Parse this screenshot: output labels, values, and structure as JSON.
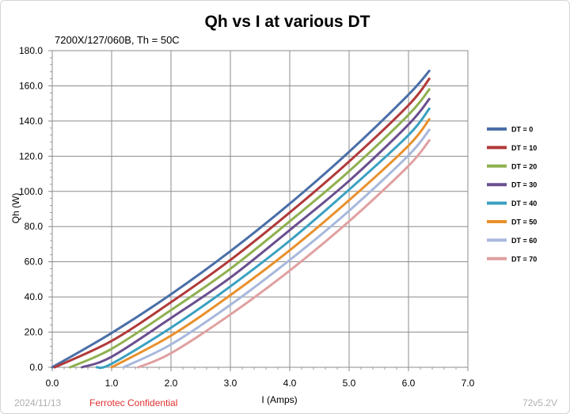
{
  "chart_data": {
    "type": "line",
    "title": "Qh vs I at various DT",
    "subtitle": "7200X/127/060B, Th = 50C",
    "xlabel": "I (Amps)",
    "ylabel": "Qh (W)",
    "xlim": [
      0,
      7
    ],
    "ylim": [
      0,
      180
    ],
    "x_ticks": [
      "0.0",
      "1.0",
      "2.0",
      "3.0",
      "4.0",
      "5.0",
      "6.0",
      "7.0"
    ],
    "y_ticks": [
      "0.0",
      "20.0",
      "40.0",
      "60.0",
      "80.0",
      "100.0",
      "120.0",
      "140.0",
      "160.0",
      "180.0"
    ],
    "grid": true,
    "legend_position": "right",
    "x": [
      0,
      1,
      2,
      3,
      4,
      5,
      6,
      6.35
    ],
    "series": [
      {
        "name": "DT = 0",
        "color": "#4a6fa8",
        "x_start": 0.0,
        "values": [
          null,
          19.5,
          41.5,
          66.0,
          93.0,
          122.5,
          155.0,
          168.5
        ]
      },
      {
        "name": "DT = 10",
        "color": "#b03a3a",
        "x_start": 0.04,
        "values": [
          null,
          15.0,
          37.0,
          61.0,
          88.0,
          117.0,
          149.0,
          164.0
        ]
      },
      {
        "name": "DT = 20",
        "color": "#8fb050",
        "x_start": 0.3,
        "values": [
          null,
          10.5,
          32.5,
          56.0,
          83.0,
          111.5,
          143.5,
          158.0
        ]
      },
      {
        "name": "DT = 30",
        "color": "#6a4f8f",
        "x_start": 0.5,
        "values": [
          null,
          6.0,
          28.0,
          51.0,
          78.0,
          106.0,
          138.0,
          152.5
        ]
      },
      {
        "name": "DT = 40",
        "color": "#3aa0c0",
        "x_start": 0.75,
        "values": [
          null,
          2.0,
          22.5,
          46.0,
          72.0,
          101.0,
          132.0,
          147.0
        ]
      },
      {
        "name": "DT = 50",
        "color": "#e8902c",
        "x_start": 1.0,
        "values": [
          null,
          0.0,
          18.0,
          41.0,
          66.5,
          95.0,
          126.0,
          141.0
        ]
      },
      {
        "name": "DT = 60",
        "color": "#a8b8dc",
        "x_start": 1.2,
        "values": [
          null,
          null,
          13.0,
          35.5,
          61.0,
          89.0,
          120.5,
          135.0
        ]
      },
      {
        "name": "DT = 70",
        "color": "#e0a0a0",
        "x_start": 1.45,
        "values": [
          null,
          null,
          8.0,
          30.0,
          55.0,
          83.0,
          114.5,
          129.0
        ]
      }
    ]
  },
  "footer": {
    "date": "2024/11/13",
    "confidential": "Ferrotec Confidential",
    "version": "72v5.2V"
  }
}
